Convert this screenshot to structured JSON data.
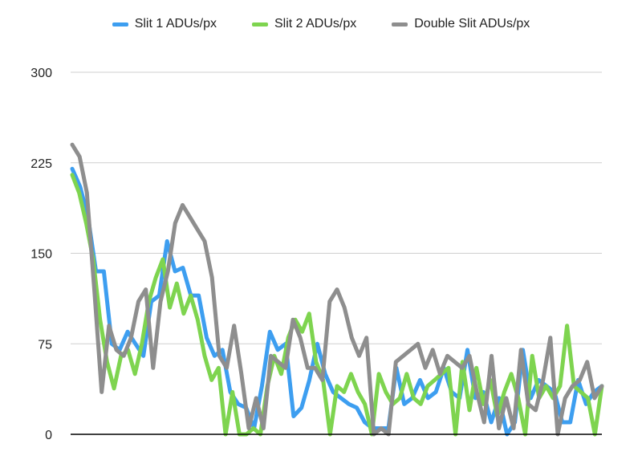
{
  "chart_data": {
    "type": "line",
    "title": "",
    "xlabel": "",
    "ylabel": "",
    "ylim": [
      0,
      300
    ],
    "yticks": [
      "0",
      "75",
      "150",
      "225",
      "300"
    ],
    "grid": true,
    "legend_position": "top",
    "series": [
      {
        "name": "Slit 1 ADUs/px",
        "color": "#3d9ef0",
        "values": [
          220,
          205,
          180,
          135,
          135,
          75,
          70,
          85,
          75,
          65,
          110,
          115,
          160,
          135,
          138,
          115,
          115,
          80,
          65,
          70,
          35,
          25,
          22,
          5,
          40,
          85,
          70,
          75,
          15,
          22,
          45,
          75,
          50,
          35,
          30,
          25,
          22,
          10,
          5,
          5,
          5,
          55,
          25,
          30,
          45,
          30,
          35,
          55,
          35,
          30,
          70,
          30,
          35,
          10,
          30,
          0,
          10,
          70,
          30,
          45,
          40,
          35,
          10,
          10,
          45,
          25,
          35,
          40
        ]
      },
      {
        "name": "Slit 2 ADUs/px",
        "color": "#7ed44f",
        "values": [
          215,
          200,
          175,
          145,
          95,
          60,
          38,
          65,
          70,
          50,
          75,
          110,
          130,
          145,
          105,
          125,
          100,
          115,
          95,
          65,
          45,
          55,
          0,
          35,
          0,
          0,
          5,
          0,
          40,
          65,
          50,
          80,
          95,
          85,
          100,
          60,
          45,
          0,
          40,
          35,
          50,
          35,
          25,
          0,
          50,
          35,
          25,
          30,
          50,
          30,
          25,
          40,
          45,
          50,
          55,
          0,
          60,
          20,
          55,
          25,
          45,
          15,
          35,
          50,
          30,
          0,
          65,
          30,
          40,
          30,
          40,
          90,
          40,
          35,
          30,
          0,
          40
        ]
      },
      {
        "name": "Double Slit ADUs/px",
        "color": "#8e8e8e",
        "values": [
          240,
          230,
          200,
          120,
          35,
          90,
          70,
          65,
          80,
          110,
          120,
          55,
          110,
          135,
          175,
          190,
          180,
          170,
          160,
          130,
          65,
          55,
          90,
          50,
          5,
          30,
          5,
          65,
          60,
          55,
          95,
          80,
          55,
          55,
          45,
          110,
          120,
          105,
          80,
          65,
          80,
          0,
          5,
          0,
          60,
          65,
          70,
          75,
          55,
          70,
          50,
          65,
          60,
          55,
          65,
          35,
          10,
          65,
          5,
          30,
          5,
          70,
          25,
          20,
          45,
          80,
          0,
          30,
          40,
          45,
          60,
          30,
          40
        ]
      }
    ]
  }
}
